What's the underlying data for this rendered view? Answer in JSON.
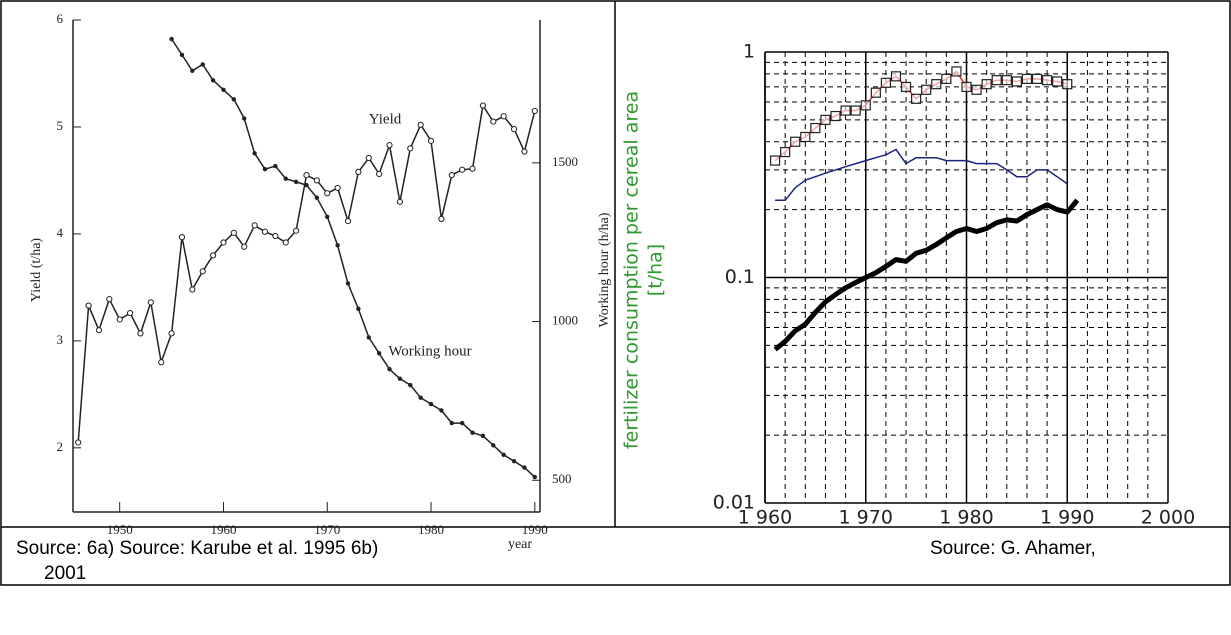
{
  "chart_data": [
    {
      "type": "line",
      "xlabel": "year",
      "ylabel": "Yield (t/ha)",
      "y2label": "Working hour (h/ha)",
      "annotations": [
        "Yield",
        "Working hour"
      ],
      "xlim": [
        1945.5,
        1990.5
      ],
      "xticks": [
        1950,
        1960,
        1970,
        1980,
        1990
      ],
      "ylim": [
        1.4,
        6
      ],
      "yticks": [
        2,
        3,
        4,
        5,
        6
      ],
      "y2lim": [
        400,
        1950
      ],
      "y2ticks": [
        500,
        1000,
        1500
      ],
      "x": [
        1946,
        1947,
        1948,
        1949,
        1950,
        1951,
        1952,
        1953,
        1954,
        1955,
        1956,
        1957,
        1958,
        1959,
        1960,
        1961,
        1962,
        1963,
        1964,
        1965,
        1966,
        1967,
        1968,
        1969,
        1970,
        1971,
        1972,
        1973,
        1974,
        1975,
        1976,
        1977,
        1978,
        1979,
        1980,
        1981,
        1982,
        1983,
        1984,
        1985,
        1986,
        1987,
        1988,
        1989,
        1990
      ],
      "series": [
        {
          "color": "#222222",
          "marker": "circle",
          "values": [
            2.05,
            3.33,
            3.1,
            3.39,
            3.2,
            3.26,
            3.07,
            3.36,
            2.8,
            3.07,
            3.97,
            3.48,
            3.65,
            3.8,
            3.92,
            4.01,
            3.88,
            4.08,
            4.02,
            3.98,
            3.92,
            4.03,
            4.55,
            4.5,
            4.38,
            4.43,
            4.12,
            4.58,
            4.71,
            4.56,
            4.83,
            4.3,
            4.8,
            5.02,
            4.87,
            4.14,
            4.55,
            4.6,
            4.61,
            5.2,
            5.05,
            5.1,
            4.98,
            4.77,
            5.15
          ]
        },
        {
          "color": "#222222",
          "marker": "dot",
          "axis": "y2",
          "values": [
            null,
            null,
            null,
            null,
            null,
            null,
            null,
            null,
            null,
            1890,
            1840,
            1790,
            1810,
            1760,
            1730,
            1700,
            1640,
            1530,
            1480,
            1490,
            1450,
            1440,
            1430,
            1390,
            1330,
            1240,
            1120,
            1040,
            950,
            900,
            850,
            820,
            800,
            760,
            740,
            720,
            680,
            680,
            650,
            640,
            610,
            580,
            560,
            540,
            510
          ]
        }
      ]
    },
    {
      "type": "line",
      "log_y": true,
      "grid": true,
      "ylabel": "fertilizer consumption per cereal area",
      "ylabel_unit": "[t/ha]",
      "ylabel_color": "#2e9a2e",
      "xlim": [
        1960,
        2000
      ],
      "xticks": [
        {
          "value": 1960,
          "label": "1 960"
        },
        {
          "value": 1970,
          "label": "1 970"
        },
        {
          "value": 1980,
          "label": "1 980"
        },
        {
          "value": 1990,
          "label": "1 990"
        },
        {
          "value": 2000,
          "label": "2 000"
        }
      ],
      "minor_xticks": [
        1962,
        1964,
        1966,
        1968,
        1972,
        1974,
        1976,
        1978,
        1982,
        1984,
        1986,
        1988,
        1992,
        1994,
        1996,
        1998
      ],
      "ylim": [
        0.01,
        1
      ],
      "yticks": [
        0.01,
        0.1,
        1
      ],
      "minor_yticks": [
        0.02,
        0.03,
        0.04,
        0.05,
        0.06,
        0.07,
        0.08,
        0.09,
        0.2,
        0.3,
        0.4,
        0.5,
        0.6,
        0.7,
        0.8,
        0.9
      ],
      "x": [
        1961,
        1962,
        1963,
        1964,
        1965,
        1966,
        1967,
        1968,
        1969,
        1970,
        1971,
        1972,
        1973,
        1974,
        1975,
        1976,
        1977,
        1978,
        1979,
        1980,
        1981,
        1982,
        1983,
        1984,
        1985,
        1986,
        1987,
        1988,
        1989,
        1990,
        1991
      ],
      "series": [
        {
          "color": "#e02020",
          "marker": "square",
          "values": [
            0.33,
            0.36,
            0.4,
            0.42,
            0.46,
            0.5,
            0.52,
            0.55,
            0.55,
            0.58,
            0.66,
            0.73,
            0.78,
            0.7,
            0.62,
            0.68,
            0.72,
            0.76,
            0.82,
            0.7,
            0.68,
            0.72,
            0.75,
            0.75,
            0.74,
            0.76,
            0.76,
            0.75,
            0.74,
            0.72,
            null
          ]
        },
        {
          "color": "#1a237e",
          "values": [
            0.22,
            0.22,
            0.25,
            0.27,
            0.28,
            0.29,
            0.3,
            0.31,
            0.32,
            0.33,
            0.34,
            0.35,
            0.37,
            0.32,
            0.34,
            0.34,
            0.34,
            0.33,
            0.33,
            0.33,
            0.32,
            0.32,
            0.32,
            0.3,
            0.28,
            0.28,
            0.3,
            0.3,
            0.28,
            0.26,
            null
          ]
        },
        {
          "color": "#000000",
          "width": 5,
          "values": [
            0.048,
            0.052,
            0.058,
            0.062,
            0.07,
            0.078,
            0.084,
            0.09,
            0.095,
            0.1,
            0.105,
            0.112,
            0.12,
            0.118,
            0.128,
            0.132,
            0.14,
            0.15,
            0.16,
            0.165,
            0.16,
            0.165,
            0.175,
            0.18,
            0.178,
            0.19,
            0.2,
            0.21,
            0.2,
            0.195,
            0.22
          ]
        }
      ]
    }
  ],
  "caption": {
    "left": "Source: 6a) Source: Karube et al. 1995 6b)",
    "right": "Source: G. Ahamer,",
    "continued": "2001"
  }
}
